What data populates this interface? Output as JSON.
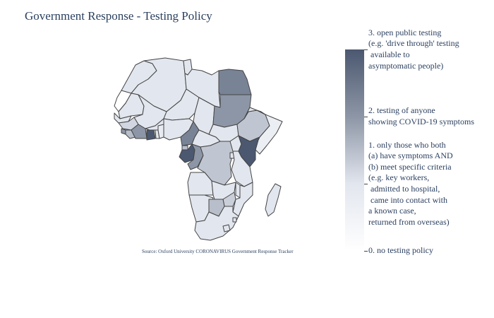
{
  "title": "Government Response - Testing Policy",
  "source_note": "Source:  Oxford University CORONAVIRUS Government Response Tracker",
  "colors": {
    "level_0": "#ffffff",
    "level_1": "#e2e6ee",
    "level_2": "#8d96a6",
    "level_3": "#4b5870",
    "border": "#444444"
  },
  "colorbar": {
    "ticks": [
      {
        "level": 3,
        "label": "3. open public testing\n(e.g. 'drive through' testing\n available to\nasymptomatic people)"
      },
      {
        "level": 2,
        "label": "2. testing of anyone\nshowing COVID-19 symptoms"
      },
      {
        "level": 1,
        "label": "1. only those who both\n(a) have symptoms AND\n(b) meet specific criteria\n(e.g. key workers,\n admitted to hospital,\n came into contact with\na known case,\nreturned from overseas)"
      },
      {
        "level": 0,
        "label": "0. no testing policy"
      }
    ]
  },
  "regions": [
    {
      "name": "Morocco",
      "level": 1
    },
    {
      "name": "Western Sahara",
      "level": 0
    },
    {
      "name": "Algeria",
      "level": 1
    },
    {
      "name": "Tunisia",
      "level": 1
    },
    {
      "name": "Libya",
      "level": 1
    },
    {
      "name": "Egypt",
      "level": 2.3
    },
    {
      "name": "Mauritania",
      "level": 1
    },
    {
      "name": "Mali",
      "level": 1
    },
    {
      "name": "Niger",
      "level": 1
    },
    {
      "name": "Chad",
      "level": 1
    },
    {
      "name": "Sudan",
      "level": 2
    },
    {
      "name": "Senegal",
      "level": 1
    },
    {
      "name": "Guinea",
      "level": 1.2
    },
    {
      "name": "Sierra Leone",
      "level": 2
    },
    {
      "name": "Liberia",
      "level": 1.5
    },
    {
      "name": "Cote d'Ivoire",
      "level": 2
    },
    {
      "name": "Burkina Faso",
      "level": 1
    },
    {
      "name": "Ghana",
      "level": 3
    },
    {
      "name": "Togo",
      "level": 1
    },
    {
      "name": "Benin",
      "level": 0.8
    },
    {
      "name": "Nigeria",
      "level": 1
    },
    {
      "name": "Cameroon",
      "level": 2.3
    },
    {
      "name": "Central African Republic",
      "level": 1
    },
    {
      "name": "South Sudan",
      "level": 1
    },
    {
      "name": "Ethiopia",
      "level": 1.4
    },
    {
      "name": "Eritrea",
      "level": 1
    },
    {
      "name": "Djibouti",
      "level": 1
    },
    {
      "name": "Somalia",
      "level": 0.7
    },
    {
      "name": "Equatorial Guinea",
      "level": 1.5
    },
    {
      "name": "Gabon",
      "level": 3
    },
    {
      "name": "Congo",
      "level": 2
    },
    {
      "name": "DR Congo",
      "level": 1.4
    },
    {
      "name": "Uganda",
      "level": 1
    },
    {
      "name": "Kenya",
      "level": 3
    },
    {
      "name": "Rwanda",
      "level": 1
    },
    {
      "name": "Tanzania",
      "level": 1
    },
    {
      "name": "Angola",
      "level": 1
    },
    {
      "name": "Zambia",
      "level": 1
    },
    {
      "name": "Malawi",
      "level": 1
    },
    {
      "name": "Mozambique",
      "level": 1
    },
    {
      "name": "Zimbabwe",
      "level": 1.3
    },
    {
      "name": "Namibia",
      "level": 1
    },
    {
      "name": "Botswana",
      "level": 1.5
    },
    {
      "name": "South Africa",
      "level": 1
    },
    {
      "name": "Lesotho",
      "level": 1
    },
    {
      "name": "Eswatini",
      "level": 1
    },
    {
      "name": "Madagascar",
      "level": 1
    }
  ]
}
